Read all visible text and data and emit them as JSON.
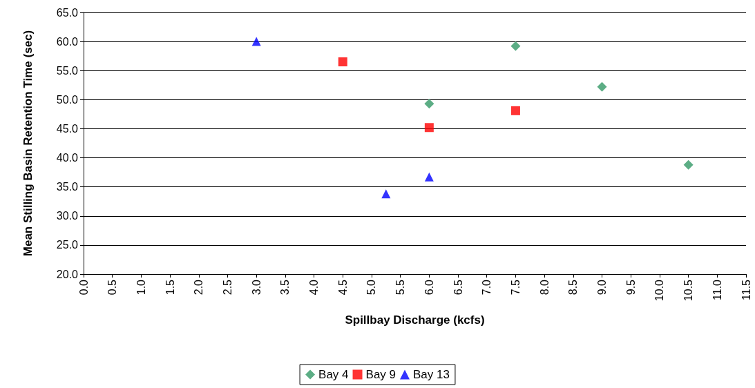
{
  "chart_data": {
    "type": "scatter",
    "xlabel": "Spillbay Discharge (kcfs)",
    "ylabel": "Mean Stilling Basin Retention Time (sec)",
    "series": [
      {
        "name": "Bay 4",
        "color": "#339966",
        "marker": "diamond",
        "x": [
          6.0,
          7.5,
          9.0,
          10.5
        ],
        "values": [
          49.3,
          59.2,
          52.2,
          38.8
        ]
      },
      {
        "name": "Bay 9",
        "color": "#ff0000",
        "marker": "square",
        "x": [
          4.5,
          6.0,
          7.5
        ],
        "values": [
          56.5,
          45.2,
          48.1
        ]
      },
      {
        "name": "Bay 13",
        "color": "#0000ff",
        "marker": "triangle",
        "x": [
          3.0,
          5.25,
          6.0
        ],
        "values": [
          60.0,
          33.8,
          36.7
        ]
      }
    ],
    "xlim": [
      0,
      11.5
    ],
    "xticks": [
      {
        "value": 0,
        "label": "0.0"
      },
      {
        "value": 0.5,
        "label": "0.5"
      },
      {
        "value": 1,
        "label": "1.0"
      },
      {
        "value": 1.5,
        "label": "1.5"
      },
      {
        "value": 2,
        "label": "2.0"
      },
      {
        "value": 2.5,
        "label": "2.5"
      },
      {
        "value": 3,
        "label": "3.0"
      },
      {
        "value": 3.5,
        "label": "3.5"
      },
      {
        "value": 4,
        "label": "4.0"
      },
      {
        "value": 4.5,
        "label": "4.5"
      },
      {
        "value": 5,
        "label": "5.0"
      },
      {
        "value": 5.5,
        "label": "5.5"
      },
      {
        "value": 6,
        "label": "6.0"
      },
      {
        "value": 6.5,
        "label": "6.5"
      },
      {
        "value": 7,
        "label": "7.0"
      },
      {
        "value": 7.5,
        "label": "7.5"
      },
      {
        "value": 8,
        "label": "8.0"
      },
      {
        "value": 8.5,
        "label": "8.5"
      },
      {
        "value": 9,
        "label": "9.0"
      },
      {
        "value": 9.5,
        "label": "9.5"
      },
      {
        "value": 10,
        "label": "10.0"
      },
      {
        "value": 10.5,
        "label": "10.5"
      },
      {
        "value": 11,
        "label": "11.0"
      },
      {
        "value": 11.5,
        "label": "11.5"
      }
    ],
    "ylim": [
      20,
      65
    ],
    "yticks": [
      {
        "value": 20,
        "label": "20.0"
      },
      {
        "value": 25,
        "label": "25.0"
      },
      {
        "value": 30,
        "label": "30.0"
      },
      {
        "value": 35,
        "label": "35.0"
      },
      {
        "value": 40,
        "label": "40.0"
      },
      {
        "value": 45,
        "label": "45.0"
      },
      {
        "value": 50,
        "label": "50.0"
      },
      {
        "value": 55,
        "label": "55.0"
      },
      {
        "value": 60,
        "label": "60.0"
      },
      {
        "value": 65,
        "label": "65.0"
      }
    ],
    "grid": "y",
    "legend": "bottom"
  }
}
